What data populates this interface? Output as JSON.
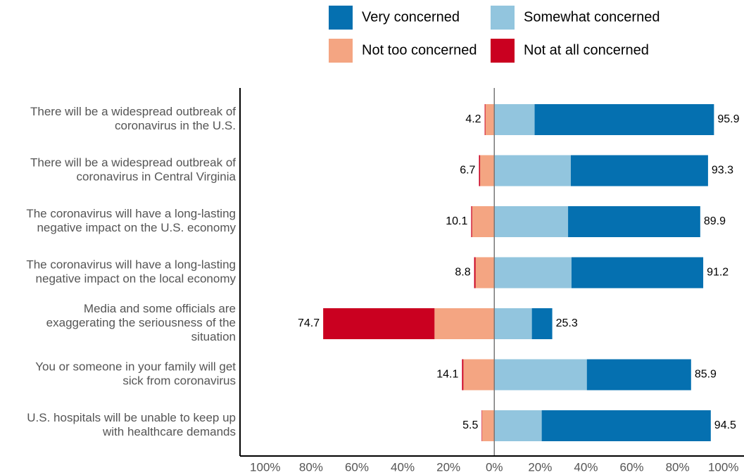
{
  "chart_data": {
    "type": "diverging_bar",
    "categories": [
      [
        "There will be a widespread outbreak of",
        "coronavirus in the U.S."
      ],
      [
        "There will be a widespread outbreak of",
        "coronavirus in Central Virginia"
      ],
      [
        "The coronavirus will have a long-lasting",
        "negative impact on the U.S. economy"
      ],
      [
        "The coronavirus will have a long-lasting",
        "negative impact on the local economy"
      ],
      [
        "Media and some officials are",
        "exaggerating the seriousness of the",
        "situation"
      ],
      [
        "You or someone in your family will get",
        "sick from coronavirus"
      ],
      [
        "U.S. hospitals will be unable to keep up",
        "with healthcare demands"
      ]
    ],
    "series": [
      {
        "name": "Very concerned",
        "color": "#0570b0",
        "values": [
          78.3,
          59.9,
          57.7,
          57.5,
          8.9,
          45.5,
          73.8
        ]
      },
      {
        "name": "Somewhat concerned",
        "color": "#92c5de",
        "values": [
          17.6,
          33.4,
          32.2,
          33.7,
          16.4,
          40.4,
          20.7
        ]
      },
      {
        "name": "Not too concerned",
        "color": "#f4a582",
        "values": [
          -3.9,
          -6.2,
          -9.7,
          -8.2,
          -26.1,
          -13.5,
          -5.3
        ]
      },
      {
        "name": "Not at all concerned",
        "color": "#ca0020",
        "values": [
          -0.3,
          -0.5,
          -0.4,
          -0.6,
          -48.6,
          -0.6,
          -0.2
        ]
      }
    ],
    "negative_totals": [
      4.2,
      6.7,
      10.1,
      8.8,
      74.7,
      14.1,
      5.5
    ],
    "positive_totals": [
      95.9,
      93.3,
      89.9,
      91.2,
      25.3,
      85.9,
      94.5
    ],
    "xlim": [
      -111,
      109
    ],
    "xticks": [
      {
        "value": -100,
        "label": "100%"
      },
      {
        "value": -80,
        "label": "80%"
      },
      {
        "value": -60,
        "label": "60%"
      },
      {
        "value": -40,
        "label": "40%"
      },
      {
        "value": -20,
        "label": "20%"
      },
      {
        "value": 0,
        "label": "0%"
      },
      {
        "value": 20,
        "label": "20%"
      },
      {
        "value": 40,
        "label": "40%"
      },
      {
        "value": 60,
        "label": "60%"
      },
      {
        "value": 80,
        "label": "80%"
      },
      {
        "value": 100,
        "label": "100%"
      }
    ]
  }
}
